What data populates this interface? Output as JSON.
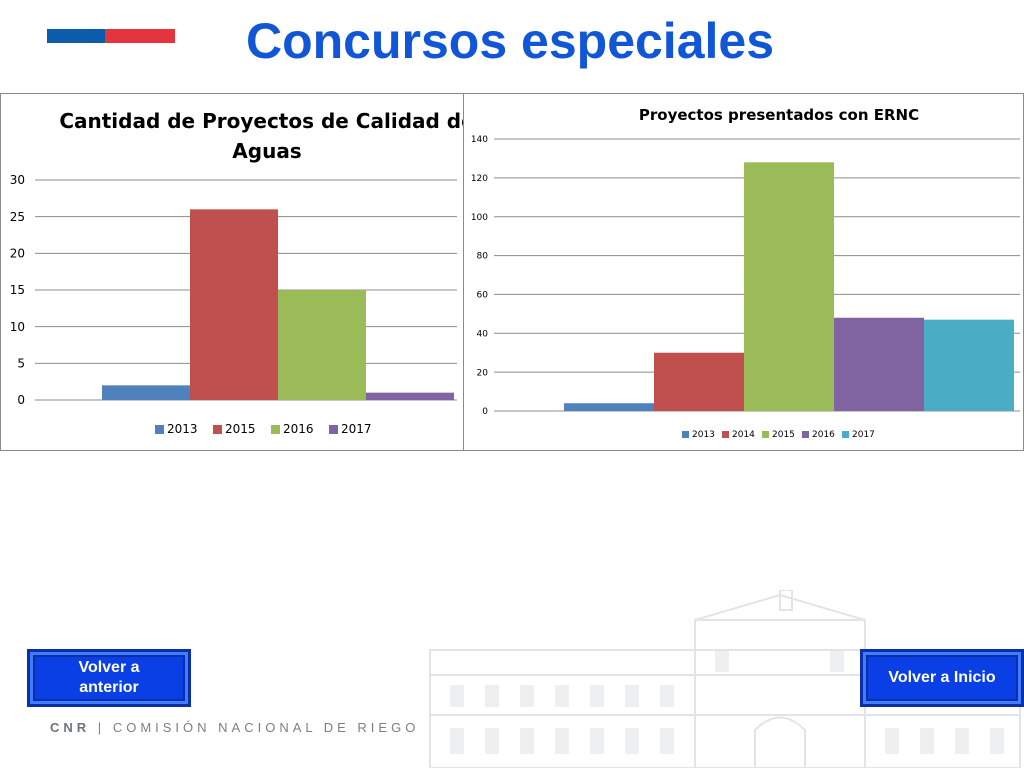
{
  "header": {
    "title": "Concursos especiales"
  },
  "colors": {
    "flag_blue": "#0b5cab",
    "flag_red": "#e4343d",
    "title": "#1156d6",
    "button": "#0a3fe6"
  },
  "chart_data": [
    {
      "type": "bar",
      "title": "Cantidad de Proyectos de Calidad de Aguas",
      "series": [
        {
          "name": "2013",
          "values": [
            2
          ],
          "color": "#4f81bd"
        },
        {
          "name": "2015",
          "values": [
            26
          ],
          "color": "#c0504d"
        },
        {
          "name": "2016",
          "values": [
            15
          ],
          "color": "#9bbb59"
        },
        {
          "name": "2017",
          "values": [
            1
          ],
          "color": "#8064a2"
        }
      ],
      "ylim": [
        0,
        30
      ],
      "yticks": [
        "0",
        "5",
        "10",
        "15",
        "20",
        "25",
        "30"
      ],
      "grid": true,
      "legend": "bottom"
    },
    {
      "type": "bar",
      "title": "Proyectos presentados con ERNC",
      "series": [
        {
          "name": "2013",
          "values": [
            4
          ],
          "color": "#4f81bd"
        },
        {
          "name": "2014",
          "values": [
            30
          ],
          "color": "#c0504d"
        },
        {
          "name": "2015",
          "values": [
            128
          ],
          "color": "#9bbb59"
        },
        {
          "name": "2016",
          "values": [
            48
          ],
          "color": "#8064a2"
        },
        {
          "name": "2017",
          "values": [
            47
          ],
          "color": "#4bacc6"
        }
      ],
      "ylim": [
        0,
        140
      ],
      "yticks": [
        "0",
        "20",
        "40",
        "60",
        "80",
        "100",
        "120",
        "140"
      ],
      "grid": true,
      "legend": "bottom"
    }
  ],
  "nav": {
    "prev_label": "Volver a anterior",
    "home_label": "Volver a Inicio"
  },
  "footer": {
    "org": "CNR",
    "separator": "|",
    "name": "COMISIÓN NACIONAL DE RIEGO"
  }
}
